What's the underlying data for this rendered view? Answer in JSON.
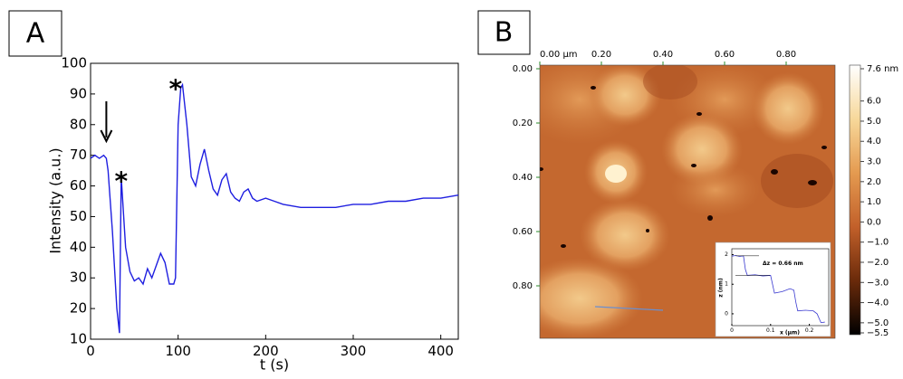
{
  "chart_data": [
    {
      "type": "line",
      "label": "A",
      "xlabel": "t (s)",
      "ylabel": "Intensity (a.u.)",
      "annotations": [
        "*",
        "*"
      ],
      "x": [
        0,
        5,
        10,
        15,
        18,
        20,
        25,
        30,
        33,
        35,
        40,
        45,
        50,
        55,
        60,
        65,
        70,
        75,
        80,
        85,
        90,
        95,
        97,
        100,
        103,
        105,
        110,
        115,
        120,
        125,
        130,
        135,
        140,
        145,
        150,
        155,
        160,
        165,
        170,
        175,
        180,
        185,
        190,
        200,
        210,
        220,
        240,
        260,
        280,
        300,
        320,
        340,
        360,
        380,
        400,
        420
      ],
      "values": [
        69,
        70,
        69,
        70,
        69,
        65,
        45,
        20,
        12,
        63,
        40,
        32,
        29,
        30,
        28,
        33,
        30,
        34,
        38,
        35,
        28,
        28,
        30,
        80,
        92,
        93,
        80,
        63,
        60,
        67,
        72,
        65,
        59,
        57,
        62,
        64,
        58,
        56,
        55,
        58,
        59,
        56,
        55,
        56,
        55,
        54,
        53,
        53,
        53,
        54,
        54,
        55,
        55,
        56,
        56,
        57
      ],
      "color": "#1f1fe0",
      "xlim": [
        0,
        420
      ],
      "ylim": [
        10,
        100
      ],
      "xticks": [
        0,
        100,
        200,
        300,
        400
      ],
      "yticks": [
        10,
        20,
        30,
        40,
        50,
        60,
        70,
        80,
        90,
        100
      ]
    },
    {
      "type": "image",
      "label": "B",
      "xlim": [
        0,
        0.96
      ],
      "ylim": [
        0,
        1.0
      ],
      "xticks": [
        {
          "value": 0,
          "label": "0.00 µm"
        },
        {
          "value": 0.2,
          "label": "0.20"
        },
        {
          "value": 0.4,
          "label": "0.40"
        },
        {
          "value": 0.6,
          "label": "0.60"
        },
        {
          "value": 0.8,
          "label": "0.80"
        }
      ],
      "yticks": [
        {
          "value": 0,
          "label": "0.00"
        },
        {
          "value": 0.2,
          "label": "0.20"
        },
        {
          "value": 0.4,
          "label": "0.40"
        },
        {
          "value": 0.6,
          "label": "0.60"
        },
        {
          "value": 0.8,
          "label": "0.80"
        }
      ],
      "clim": [
        -5.5,
        7.6
      ],
      "cticks": [
        {
          "value": 7.6,
          "label": "7.6 nm"
        },
        {
          "value": 6,
          "label": "6.0"
        },
        {
          "value": 5,
          "label": "5.0"
        },
        {
          "value": 4,
          "label": "4.0"
        },
        {
          "value": 3,
          "label": "3.0"
        },
        {
          "value": 2,
          "label": "2.0"
        },
        {
          "value": 1,
          "label": "1.0"
        },
        {
          "value": 0,
          "label": "0.0"
        },
        {
          "value": -1,
          "label": "−1.0"
        },
        {
          "value": -2,
          "label": "−2.0"
        },
        {
          "value": -3,
          "label": "−3.0"
        },
        {
          "value": -4,
          "label": "−4.0"
        },
        {
          "value": -5,
          "label": "−5.0"
        },
        {
          "value": -5.5,
          "label": "−5.5"
        }
      ]
    },
    {
      "type": "line",
      "xlabel": "x (µm)",
      "ylabel": "z (nm)",
      "annotation": "Δz = 0.66 nm",
      "x": [
        0,
        0.01,
        0.02,
        0.03,
        0.035,
        0.04,
        0.06,
        0.08,
        0.1,
        0.105,
        0.11,
        0.13,
        0.15,
        0.16,
        0.165,
        0.17,
        0.19,
        0.21,
        0.22,
        0.23,
        0.24
      ],
      "values": [
        1.95,
        1.97,
        1.94,
        1.96,
        1.5,
        1.3,
        1.32,
        1.28,
        1.3,
        1.0,
        0.7,
        0.75,
        0.85,
        0.8,
        0.4,
        0.1,
        0.12,
        0.1,
        0.0,
        -0.3,
        -0.28
      ],
      "color": "#3a3ad0",
      "xlim": [
        0,
        0.25
      ],
      "ylim": [
        -0.4,
        2.2
      ],
      "xticks": [
        0,
        0.1,
        0.2
      ],
      "yticks": [
        0,
        1,
        2
      ]
    }
  ]
}
